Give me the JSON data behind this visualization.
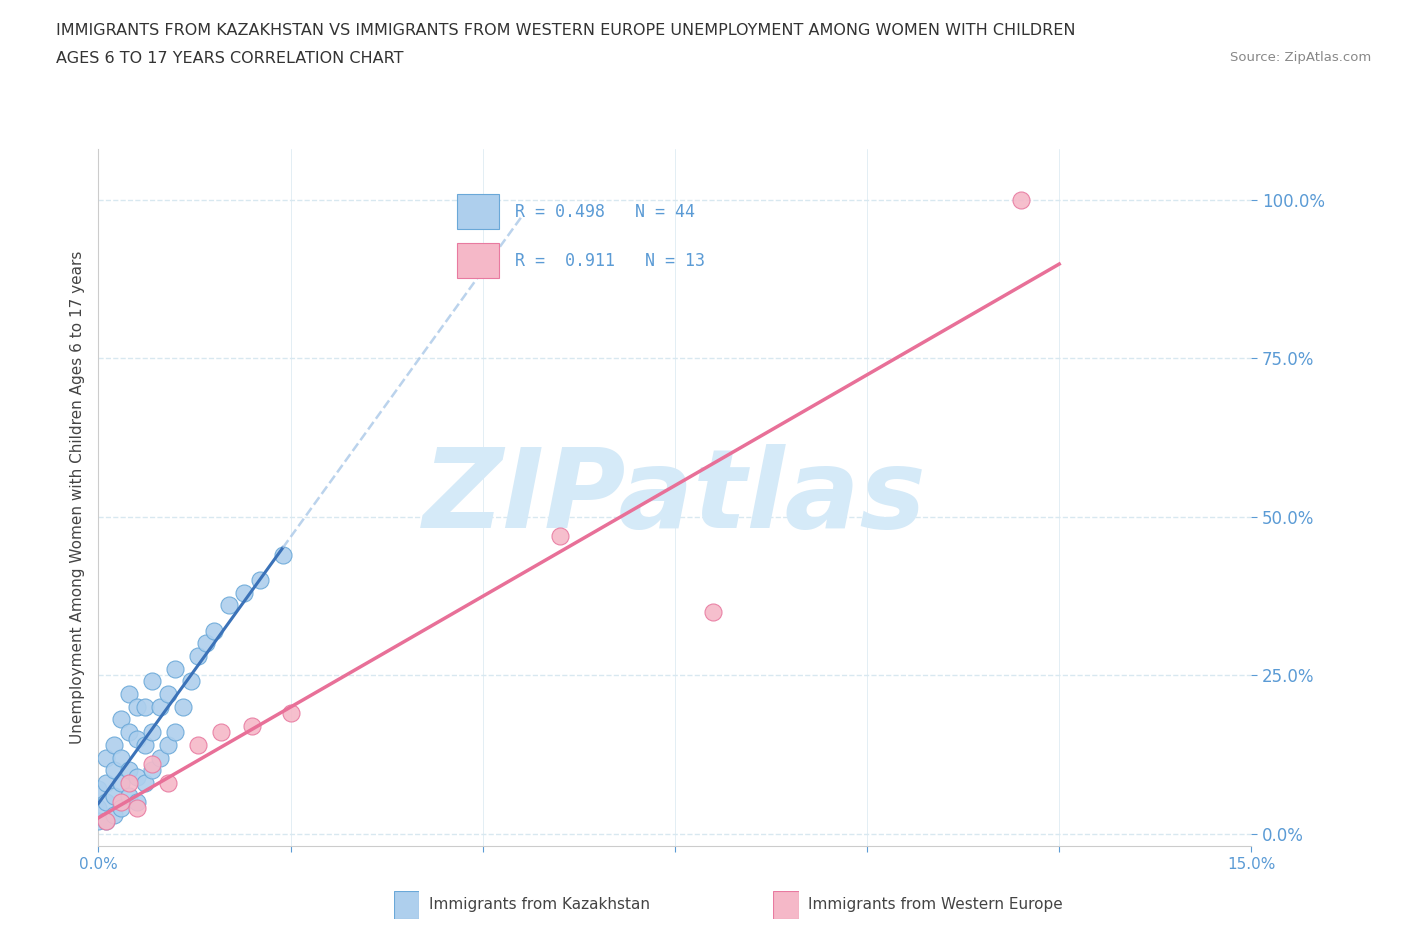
{
  "title_line1": "IMMIGRANTS FROM KAZAKHSTAN VS IMMIGRANTS FROM WESTERN EUROPE UNEMPLOYMENT AMONG WOMEN WITH CHILDREN",
  "title_line2": "AGES 6 TO 17 YEARS CORRELATION CHART",
  "source_text": "Source: ZipAtlas.com",
  "ylabel": "Unemployment Among Women with Children Ages 6 to 17 years",
  "xlim": [
    0.0,
    0.15
  ],
  "ylim": [
    -0.02,
    1.08
  ],
  "ytick_vals": [
    0.0,
    0.25,
    0.5,
    0.75,
    1.0
  ],
  "ytick_labels": [
    "0.0%",
    "25.0%",
    "50.0%",
    "75.0%",
    "100.0%"
  ],
  "xtick_vals": [
    0.0,
    0.025,
    0.05,
    0.075,
    0.1,
    0.125,
    0.15
  ],
  "xtick_labels": [
    "0.0%",
    "",
    "",
    "",
    "",
    "",
    "15.0%"
  ],
  "kazakhstan_fill": "#aecfed",
  "kazakhstan_edge": "#6aa8d8",
  "we_fill": "#f5b8c8",
  "we_edge": "#e87aa0",
  "trend_kaz_color": "#3b72b8",
  "trend_we_color": "#e87098",
  "grid_color": "#d8e8f0",
  "tick_color": "#5b9bd5",
  "R_kazakhstan": 0.498,
  "N_kazakhstan": 44,
  "R_western_europe": 0.911,
  "N_western_europe": 13,
  "watermark": "ZIPatlas",
  "watermark_color": "#d5eaf8",
  "legend_label_kaz": "Immigrants from Kazakhstan",
  "legend_label_we": "Immigrants from Western Europe",
  "kaz_x": [
    0.0,
    0.0,
    0.0,
    0.001,
    0.001,
    0.001,
    0.001,
    0.002,
    0.002,
    0.002,
    0.002,
    0.003,
    0.003,
    0.003,
    0.003,
    0.004,
    0.004,
    0.004,
    0.004,
    0.005,
    0.005,
    0.005,
    0.005,
    0.006,
    0.006,
    0.006,
    0.007,
    0.007,
    0.007,
    0.008,
    0.008,
    0.009,
    0.009,
    0.01,
    0.01,
    0.011,
    0.012,
    0.013,
    0.014,
    0.015,
    0.017,
    0.019,
    0.021,
    0.024
  ],
  "kaz_y": [
    0.02,
    0.04,
    0.07,
    0.02,
    0.05,
    0.08,
    0.12,
    0.03,
    0.06,
    0.1,
    0.14,
    0.04,
    0.08,
    0.12,
    0.18,
    0.06,
    0.1,
    0.16,
    0.22,
    0.05,
    0.09,
    0.15,
    0.2,
    0.08,
    0.14,
    0.2,
    0.1,
    0.16,
    0.24,
    0.12,
    0.2,
    0.14,
    0.22,
    0.16,
    0.26,
    0.2,
    0.24,
    0.28,
    0.3,
    0.32,
    0.36,
    0.38,
    0.4,
    0.44
  ],
  "we_x": [
    0.001,
    0.003,
    0.004,
    0.005,
    0.007,
    0.009,
    0.013,
    0.016,
    0.02,
    0.025,
    0.06,
    0.08,
    0.12
  ],
  "we_y": [
    0.02,
    0.05,
    0.08,
    0.04,
    0.11,
    0.08,
    0.14,
    0.16,
    0.17,
    0.19,
    0.47,
    0.35,
    1.0
  ]
}
